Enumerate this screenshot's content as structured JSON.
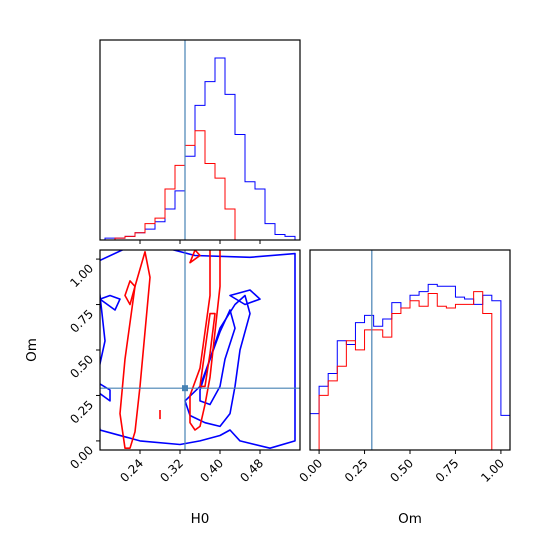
{
  "chart_data": {
    "type": "corner",
    "parameters": [
      "H0",
      "Om"
    ],
    "truths": {
      "H0": 0.33,
      "Om": 0.29
    },
    "colors": {
      "series_a": "#0000ff",
      "series_b": "#ff0000",
      "truth": "#4682b4"
    },
    "series": [
      {
        "color": "#0000ff",
        "hist_H0": {
          "edges": [
            0.15,
            0.17,
            0.19,
            0.21,
            0.23,
            0.25,
            0.27,
            0.29,
            0.31,
            0.33,
            0.35,
            0.37,
            0.39,
            0.41,
            0.43,
            0.45,
            0.47,
            0.49,
            0.51,
            0.53,
            0.55
          ],
          "counts": [
            0.0,
            0.01,
            0.01,
            0.02,
            0.04,
            0.06,
            0.1,
            0.17,
            0.27,
            0.46,
            0.74,
            0.87,
            1.0,
            0.8,
            0.58,
            0.32,
            0.28,
            0.09,
            0.03,
            0.02
          ]
        },
        "hist_Om": {
          "edges": [
            -0.05,
            0.0,
            0.05,
            0.1,
            0.15,
            0.2,
            0.25,
            0.3,
            0.35,
            0.4,
            0.45,
            0.5,
            0.55,
            0.6,
            0.65,
            0.7,
            0.75,
            0.8,
            0.85,
            0.9,
            0.95,
            1.0,
            1.05
          ],
          "counts": [
            0.2,
            0.35,
            0.42,
            0.6,
            0.58,
            0.7,
            0.74,
            0.68,
            0.72,
            0.81,
            0.78,
            0.85,
            0.87,
            0.91,
            0.9,
            0.9,
            0.84,
            0.83,
            0.8,
            0.85,
            0.82,
            0.19
          ]
        },
        "contours": [
          {
            "level": "outer",
            "points": [
              [
                0.15,
                0.98
              ],
              [
                0.22,
                1.07
              ],
              [
                0.28,
                1.07
              ],
              [
                0.35,
                1.02
              ],
              [
                0.46,
                1.01
              ],
              [
                0.55,
                1.03
              ],
              [
                0.55,
                0.0
              ],
              [
                0.5,
                -0.04
              ],
              [
                0.44,
                0.0
              ],
              [
                0.42,
                0.06
              ],
              [
                0.4,
                0.03
              ],
              [
                0.36,
                0.0
              ],
              [
                0.32,
                -0.02
              ],
              [
                0.24,
                0.0
              ],
              [
                0.16,
                0.06
              ],
              [
                0.15,
                0.3
              ],
              [
                0.17,
                0.55
              ],
              [
                0.16,
                0.8
              ]
            ]
          },
          {
            "level": "inner",
            "points": [
              [
                0.33,
                0.22
              ],
              [
                0.36,
                0.3
              ],
              [
                0.38,
                0.45
              ],
              [
                0.4,
                0.62
              ],
              [
                0.43,
                0.75
              ],
              [
                0.45,
                0.8
              ],
              [
                0.46,
                0.7
              ],
              [
                0.44,
                0.5
              ],
              [
                0.43,
                0.3
              ],
              [
                0.42,
                0.15
              ],
              [
                0.4,
                0.08
              ],
              [
                0.37,
                0.1
              ],
              [
                0.34,
                0.14
              ]
            ]
          },
          {
            "level": "core",
            "points": [
              [
                0.36,
                0.28
              ],
              [
                0.38,
                0.45
              ],
              [
                0.4,
                0.6
              ],
              [
                0.42,
                0.72
              ],
              [
                0.43,
                0.62
              ],
              [
                0.41,
                0.45
              ],
              [
                0.4,
                0.3
              ],
              [
                0.38,
                0.2
              ],
              [
                0.36,
                0.22
              ]
            ]
          },
          {
            "level": "island",
            "points": [
              [
                0.16,
                0.78
              ],
              [
                0.19,
                0.72
              ],
              [
                0.2,
                0.78
              ],
              [
                0.18,
                0.8
              ]
            ]
          },
          {
            "level": "island",
            "points": [
              [
                0.15,
                0.33
              ],
              [
                0.18,
                0.28
              ],
              [
                0.18,
                0.22
              ],
              [
                0.15,
                0.28
              ]
            ]
          },
          {
            "level": "island",
            "points": [
              [
                0.42,
                0.8
              ],
              [
                0.45,
                0.75
              ],
              [
                0.48,
                0.78
              ],
              [
                0.46,
                0.83
              ]
            ]
          }
        ]
      },
      {
        "color": "#ff0000",
        "hist_H0": {
          "edges": [
            0.15,
            0.17,
            0.19,
            0.21,
            0.23,
            0.25,
            0.27,
            0.29,
            0.31,
            0.33,
            0.35,
            0.37,
            0.39,
            0.41,
            0.43,
            0.45,
            0.47,
            0.49,
            0.51,
            0.53,
            0.55
          ],
          "counts": [
            0.0,
            0.0,
            0.01,
            0.02,
            0.04,
            0.09,
            0.12,
            0.28,
            0.41,
            0.52,
            0.6,
            0.42,
            0.34,
            0.17,
            0.0,
            0.0,
            0.0,
            0.0,
            0.0,
            0.0
          ]
        },
        "hist_Om": {
          "edges": [
            0.0,
            0.05,
            0.1,
            0.15,
            0.2,
            0.25,
            0.3,
            0.35,
            0.4,
            0.45,
            0.5,
            0.55,
            0.6,
            0.65,
            0.7,
            0.75,
            0.8,
            0.85,
            0.9,
            0.95,
            1.0
          ],
          "counts": [
            0.3,
            0.38,
            0.46,
            0.6,
            0.55,
            0.66,
            0.66,
            0.62,
            0.75,
            0.78,
            0.82,
            0.79,
            0.86,
            0.79,
            0.78,
            0.8,
            0.8,
            0.87,
            0.75,
            0.0
          ]
        },
        "contours": [
          {
            "level": "outer",
            "points": [
              [
                0.21,
                -0.04
              ],
              [
                0.2,
                0.15
              ],
              [
                0.21,
                0.45
              ],
              [
                0.23,
                0.85
              ],
              [
                0.25,
                1.04
              ],
              [
                0.26,
                0.9
              ],
              [
                0.25,
                0.6
              ],
              [
                0.24,
                0.3
              ],
              [
                0.23,
                0.05
              ],
              [
                0.22,
                -0.04
              ]
            ]
          },
          {
            "level": "outer",
            "points": [
              [
                0.34,
                0.1
              ],
              [
                0.34,
                0.25
              ],
              [
                0.36,
                0.4
              ],
              [
                0.37,
                0.6
              ],
              [
                0.38,
                0.8
              ],
              [
                0.38,
                1.05
              ],
              [
                0.4,
                1.06
              ],
              [
                0.4,
                0.85
              ],
              [
                0.39,
                0.6
              ],
              [
                0.38,
                0.35
              ],
              [
                0.37,
                0.2
              ],
              [
                0.36,
                0.08
              ],
              [
                0.35,
                0.06
              ]
            ]
          },
          {
            "level": "inner",
            "points": [
              [
                0.36,
                0.3
              ],
              [
                0.37,
                0.5
              ],
              [
                0.38,
                0.7
              ],
              [
                0.39,
                0.7
              ],
              [
                0.38,
                0.48
              ],
              [
                0.37,
                0.3
              ]
            ]
          },
          {
            "level": "island",
            "points": [
              [
                0.21,
                0.8
              ],
              [
                0.22,
                0.75
              ],
              [
                0.23,
                0.85
              ],
              [
                0.22,
                0.88
              ]
            ]
          },
          {
            "level": "island",
            "points": [
              [
                0.28,
                0.12
              ],
              [
                0.28,
                0.17
              ]
            ]
          },
          {
            "level": "island",
            "points": [
              [
                0.34,
                0.98
              ],
              [
                0.35,
                1.05
              ],
              [
                0.36,
                1.02
              ]
            ]
          }
        ]
      }
    ],
    "x_H0": {
      "range": [
        0.16,
        0.56
      ],
      "ticks": [
        0.24,
        0.32,
        0.4,
        0.48
      ],
      "ticklabels": [
        "0.24",
        "0.32",
        "0.40",
        "0.48"
      ],
      "label": "H0"
    },
    "y_Om": {
      "range": [
        -0.05,
        1.05
      ],
      "ticks": [
        0.0,
        0.25,
        0.5,
        0.75,
        1.0
      ],
      "ticklabels": [
        "0.00",
        "0.25",
        "0.50",
        "0.75",
        "1.00"
      ],
      "label": "Om"
    },
    "x_Om": {
      "range": [
        -0.05,
        1.05
      ],
      "ticks": [
        0.0,
        0.25,
        0.5,
        0.75,
        1.0
      ],
      "ticklabels": [
        "0.00",
        "0.25",
        "0.50",
        "0.75",
        "1.00"
      ],
      "label": "Om"
    }
  }
}
